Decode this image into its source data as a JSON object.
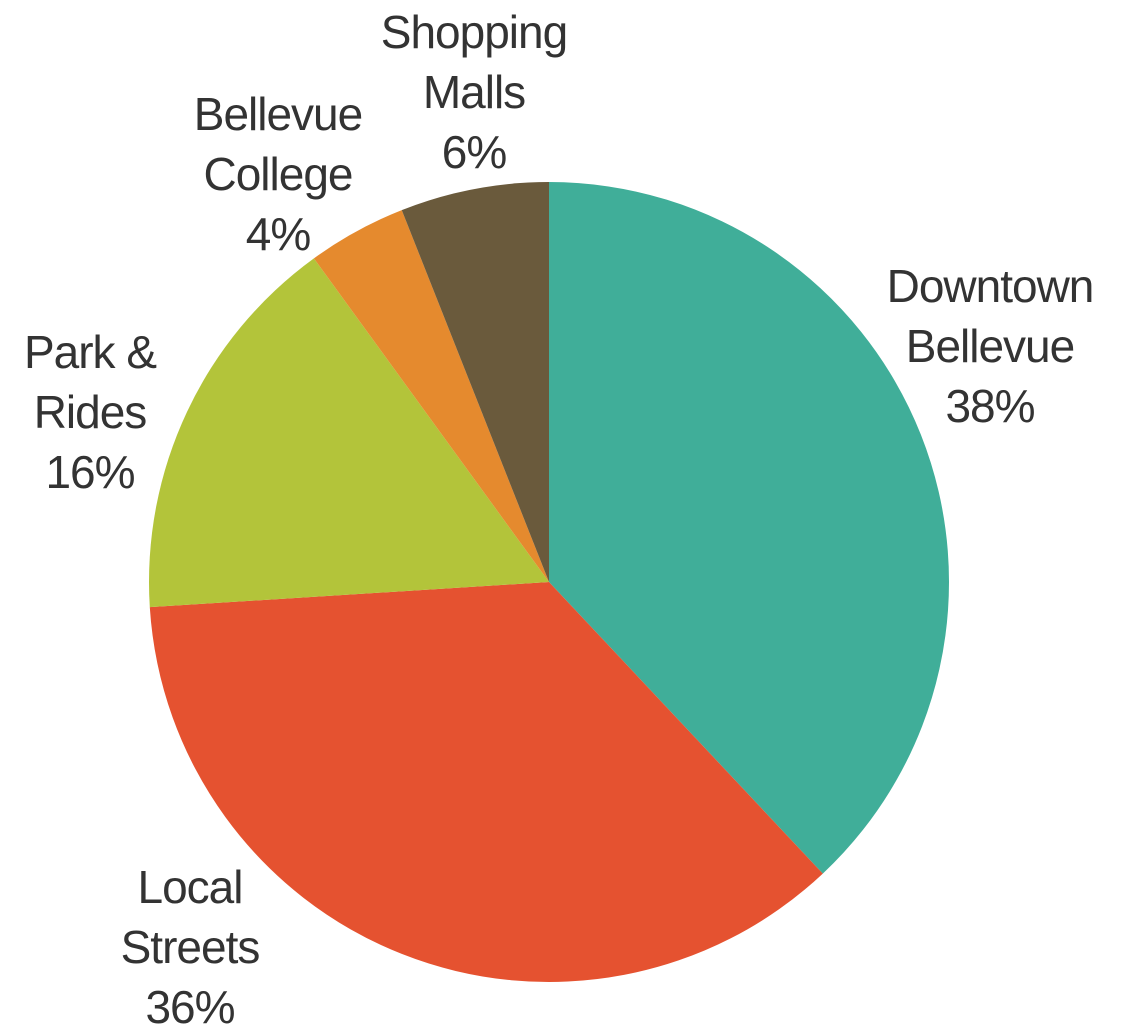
{
  "chart_data": {
    "type": "pie",
    "title": "",
    "start": "12 o'clock",
    "direction": "clockwise",
    "slices": [
      {
        "name": "Downtown Bellevue",
        "label_lines": [
          "Downtown",
          "Bellevue"
        ],
        "value": 38,
        "value_label": "38%",
        "color": "#40AE99"
      },
      {
        "name": "Local Streets",
        "label_lines": [
          "Local",
          "Streets"
        ],
        "value": 36,
        "value_label": "36%",
        "color": "#E55230"
      },
      {
        "name": "Park & Rides",
        "label_lines": [
          "Park &",
          "Rides"
        ],
        "value": 16,
        "value_label": "16%",
        "color": "#B3C43A"
      },
      {
        "name": "Bellevue College",
        "label_lines": [
          "Bellevue",
          "College"
        ],
        "value": 4,
        "value_label": "4%",
        "color": "#E58A2E"
      },
      {
        "name": "Shopping Malls",
        "label_lines": [
          "Shopping",
          "Malls"
        ],
        "value": 6,
        "value_label": "6%",
        "color": "#6A5A3C"
      }
    ]
  }
}
